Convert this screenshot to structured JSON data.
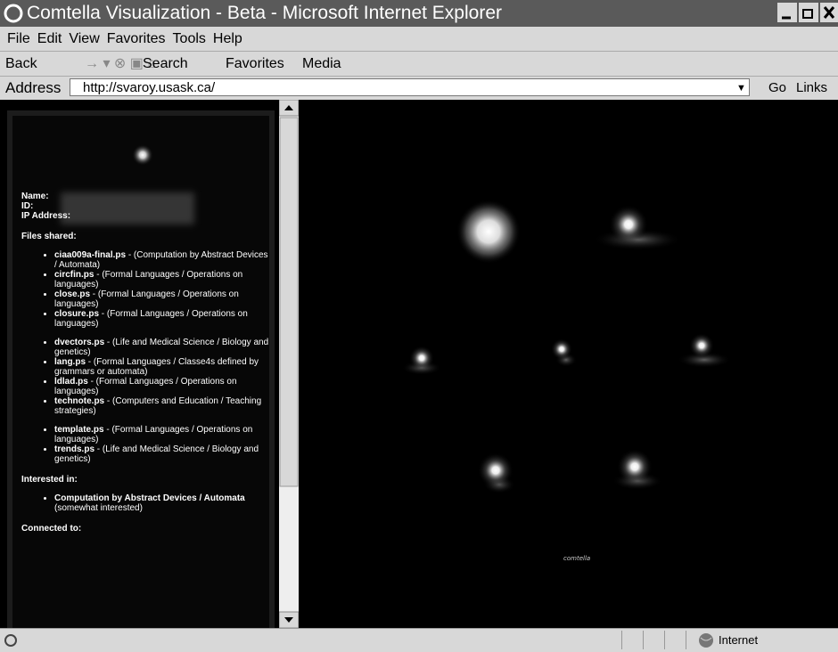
{
  "window": {
    "title": "Comtella Visualization - Beta - Microsoft Internet Explorer"
  },
  "menu": [
    "File",
    "Edit",
    "View",
    "Favorites",
    "Tools",
    "Help"
  ],
  "toolbar": [
    "Back",
    "Search",
    "Favorites",
    "Media"
  ],
  "address": {
    "label": "Address",
    "url": "http://svaroy.usask.ca/",
    "go": "Go",
    "links": "Links"
  },
  "profile": {
    "fields": [
      "Name:",
      "ID:",
      "IP Address:"
    ],
    "files_heading": "Files shared:",
    "files": [
      {
        "name": "ciaa009a-final.ps",
        "description": " - (Computation by Abstract Devices / Automata)"
      },
      {
        "name": "circfin.ps",
        "description": " - (Formal Languages / Operations on languages)"
      },
      {
        "name": "close.ps",
        "description": " - (Formal Languages / Operations on languages)"
      },
      {
        "name": "closure.ps",
        "description": " - (Formal Languages / Operations on languages)"
      },
      {
        "name": "dvectors.ps",
        "description": " - (Life and Medical Science / Biology and genetics)"
      },
      {
        "name": "lang.ps",
        "description": " - (Formal Languages / Classe4s defined by grammars or automata)"
      },
      {
        "name": "ldlad.ps",
        "description": " - (Formal Languages / Operations on languages)"
      },
      {
        "name": "technote.ps",
        "description": " - (Computers and Education / Teaching strategies)"
      },
      {
        "name": "template.ps",
        "description": " - (Formal Languages / Operations on languages)"
      },
      {
        "name": "trends.ps",
        "description": " - (Life and Medical Science / Biology and genetics)"
      }
    ],
    "interested_heading": "Interested in:",
    "interests": [
      {
        "name": "Computation by Abstract Devices / Automata",
        "level": "(somewhat interested)"
      }
    ],
    "connected_heading": "Connected to:"
  },
  "visualization": {
    "label": "comtella"
  },
  "status": {
    "zone": "Internet"
  }
}
